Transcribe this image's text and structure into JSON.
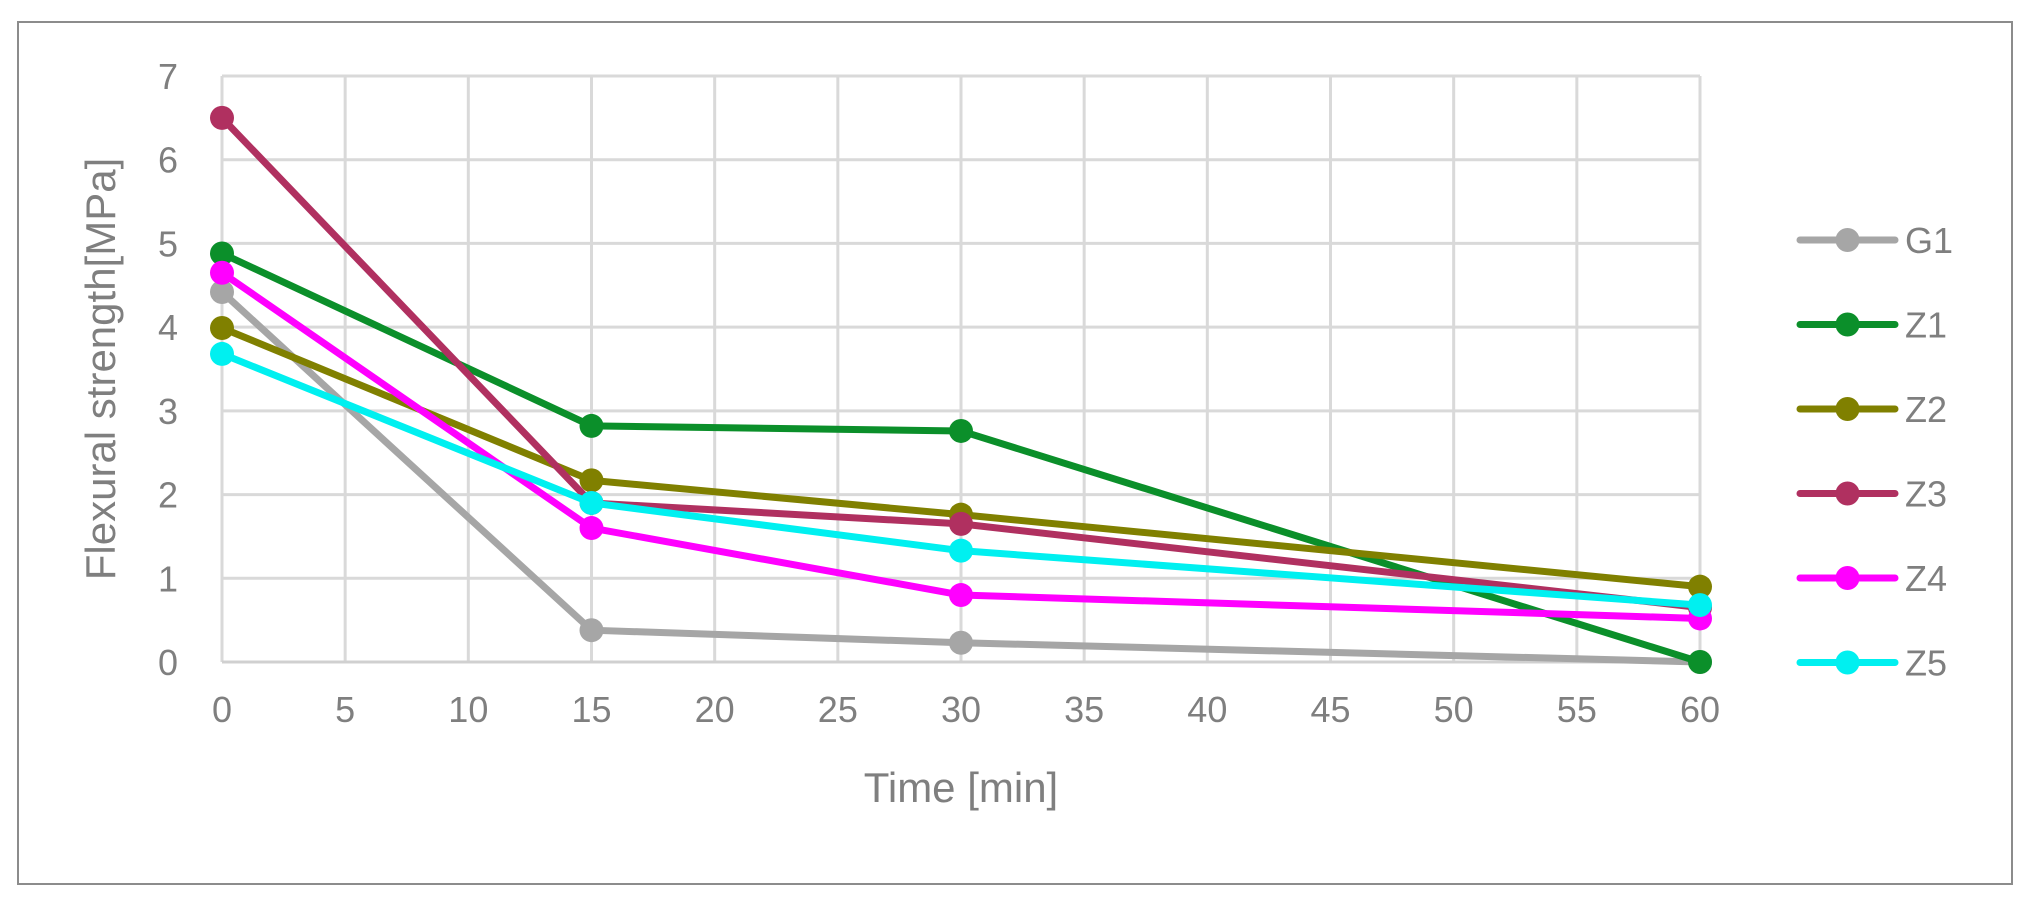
{
  "chart_data": {
    "type": "line",
    "title": "",
    "xlabel": "Time [min]",
    "ylabel": "Flexural strength[MPa]",
    "xlim": [
      0,
      60
    ],
    "ylim": [
      0,
      7
    ],
    "x_ticks": [
      0,
      5,
      10,
      15,
      20,
      25,
      30,
      35,
      40,
      45,
      50,
      55,
      60
    ],
    "y_ticks": [
      0,
      1,
      2,
      3,
      4,
      5,
      6,
      7
    ],
    "grid": true,
    "legend_position": "right",
    "series": [
      {
        "name": "G1",
        "color": "#a6a6a6",
        "points": [
          [
            0,
            4.42
          ],
          [
            15,
            0.38
          ],
          [
            30,
            0.23
          ],
          [
            60,
            0.0
          ]
        ]
      },
      {
        "name": "Z1",
        "color": "#0b8f2a",
        "points": [
          [
            0,
            4.88
          ],
          [
            15,
            2.82
          ],
          [
            30,
            2.76
          ],
          [
            60,
            0.0
          ]
        ]
      },
      {
        "name": "Z2",
        "color": "#808000",
        "points": [
          [
            0,
            3.99
          ],
          [
            15,
            2.17
          ],
          [
            30,
            1.76
          ],
          [
            60,
            0.9
          ]
        ]
      },
      {
        "name": "Z3",
        "color": "#b03060",
        "points": [
          [
            0,
            6.5
          ],
          [
            15,
            1.9
          ],
          [
            30,
            1.65
          ],
          [
            60,
            0.65
          ]
        ]
      },
      {
        "name": "Z4",
        "color": "#ff00ff",
        "points": [
          [
            0,
            4.65
          ],
          [
            15,
            1.6
          ],
          [
            30,
            0.8
          ],
          [
            60,
            0.52
          ]
        ]
      },
      {
        "name": "Z5",
        "color": "#00f0f0",
        "points": [
          [
            0,
            3.68
          ],
          [
            15,
            1.9
          ],
          [
            30,
            1.33
          ],
          [
            60,
            0.68
          ]
        ]
      }
    ]
  }
}
